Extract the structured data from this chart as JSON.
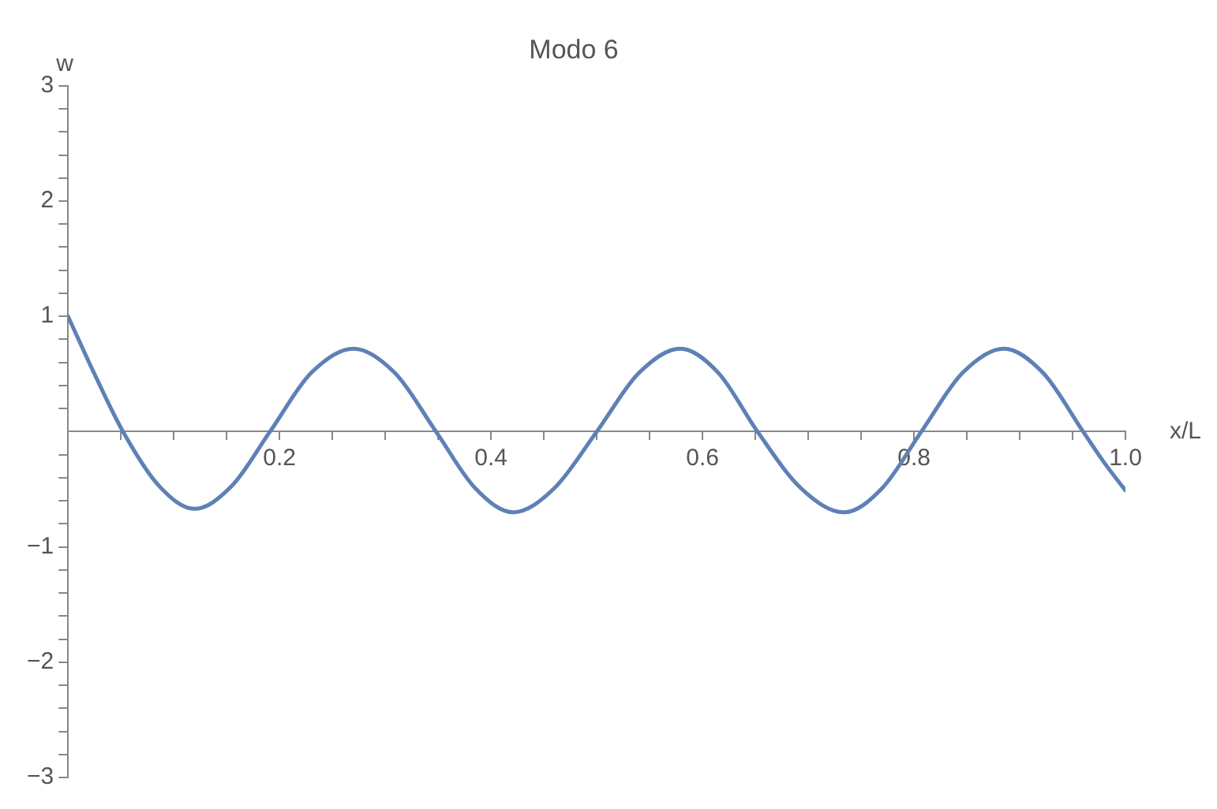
{
  "chart_data": {
    "type": "line",
    "title": "Modo 6",
    "xlabel": "x/L",
    "ylabel": "w",
    "x": [
      0,
      0.025,
      0.052,
      0.086,
      0.1195,
      0.155,
      0.191,
      0.23,
      0.27,
      0.309,
      0.348,
      0.385,
      0.421,
      0.46,
      0.5,
      0.54,
      0.579,
      0.615,
      0.652,
      0.693,
      0.734,
      0.77,
      0.807,
      0.846,
      0.885,
      0.922,
      0.96,
      0.98,
      1.0
    ],
    "series": [
      {
        "color": "#5e81b5",
        "values": [
          1.0,
          0.5,
          0,
          -0.47,
          -0.67,
          -0.47,
          0,
          0.51,
          0.72,
          0.51,
          0,
          -0.49,
          -0.7,
          -0.49,
          0,
          0.51,
          0.72,
          0.51,
          0,
          -0.49,
          -0.7,
          -0.49,
          0,
          0.51,
          0.72,
          0.51,
          0,
          -0.27,
          -0.51
        ]
      }
    ],
    "xlim": [
      0,
      1.0
    ],
    "xticks": [
      {
        "value": 0.05,
        "label": null
      },
      {
        "value": 0.1,
        "label": null
      },
      {
        "value": 0.15,
        "label": null
      },
      {
        "value": 0.2,
        "label": "0.2"
      },
      {
        "value": 0.25,
        "label": null
      },
      {
        "value": 0.3,
        "label": null
      },
      {
        "value": 0.35,
        "label": null
      },
      {
        "value": 0.4,
        "label": "0.4"
      },
      {
        "value": 0.45,
        "label": null
      },
      {
        "value": 0.5,
        "label": null
      },
      {
        "value": 0.55,
        "label": null
      },
      {
        "value": 0.6,
        "label": "0.6"
      },
      {
        "value": 0.65,
        "label": null
      },
      {
        "value": 0.7,
        "label": null
      },
      {
        "value": 0.75,
        "label": null
      },
      {
        "value": 0.8,
        "label": "0.8"
      },
      {
        "value": 0.85,
        "label": null
      },
      {
        "value": 0.9,
        "label": null
      },
      {
        "value": 0.95,
        "label": null
      },
      {
        "value": 1.0,
        "label": "1.0"
      }
    ],
    "ylim": [
      -3,
      3
    ],
    "yticks": [
      {
        "value": -3,
        "label": "−3"
      },
      {
        "value": -2.8,
        "label": null
      },
      {
        "value": -2.6,
        "label": null
      },
      {
        "value": -2.4,
        "label": null
      },
      {
        "value": -2.2,
        "label": null
      },
      {
        "value": -2,
        "label": "−2"
      },
      {
        "value": -1.8,
        "label": null
      },
      {
        "value": -1.6,
        "label": null
      },
      {
        "value": -1.4,
        "label": null
      },
      {
        "value": -1.2,
        "label": null
      },
      {
        "value": -1,
        "label": "−1"
      },
      {
        "value": -0.8,
        "label": null
      },
      {
        "value": -0.6,
        "label": null
      },
      {
        "value": -0.4,
        "label": null
      },
      {
        "value": -0.2,
        "label": null
      },
      {
        "value": 0.2,
        "label": null
      },
      {
        "value": 0.4,
        "label": null
      },
      {
        "value": 0.6,
        "label": null
      },
      {
        "value": 0.8,
        "label": null
      },
      1,
      {
        "value": 1.2,
        "label": null
      },
      {
        "value": 1.4,
        "label": null
      },
      {
        "value": 1.6,
        "label": null
      },
      {
        "value": 1.8,
        "label": null
      },
      2,
      {
        "value": 2.2,
        "label": null
      },
      {
        "value": 2.4,
        "label": null
      },
      {
        "value": 2.6,
        "label": null
      },
      {
        "value": 2.8,
        "label": null
      },
      3
    ],
    "grid": false,
    "legend": false,
    "marker": "none",
    "line_style": "solid"
  }
}
